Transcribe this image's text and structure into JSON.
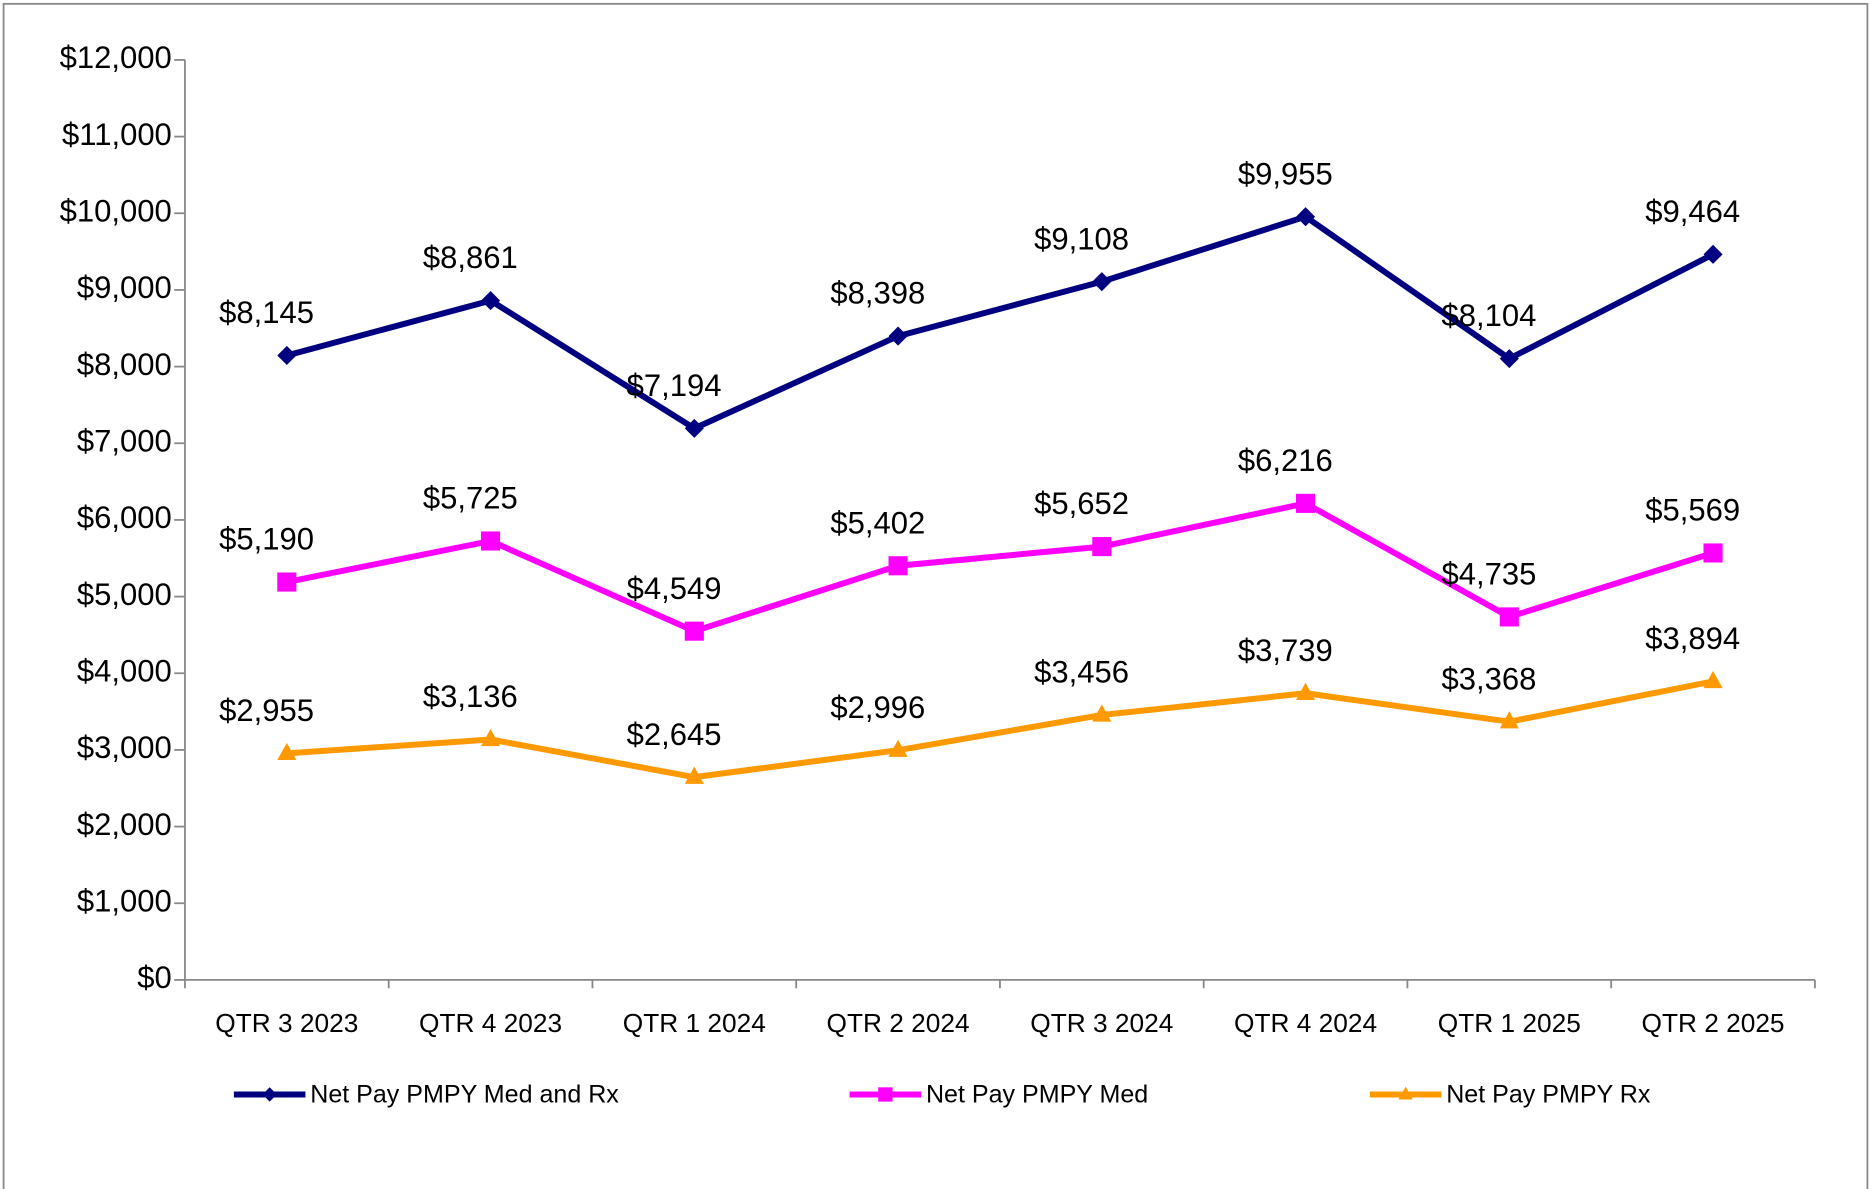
{
  "chart_data": {
    "type": "line",
    "categories": [
      "QTR 3 2023",
      "QTR 4 2023",
      "QTR 1 2024",
      "QTR 2 2024",
      "QTR 3 2024",
      "QTR 4 2024",
      "QTR 1 2025",
      "QTR 2 2025"
    ],
    "series": [
      {
        "name": "Net Pay PMPY Med and Rx",
        "color": "#000080",
        "marker": "diamond",
        "values": [
          8145,
          8861,
          7194,
          8398,
          9108,
          9955,
          8104,
          9464
        ],
        "value_labels": [
          "$8,145",
          "$8,861",
          "$7,194",
          "$8,398",
          "$9,108",
          "$9,955",
          "$8,104",
          "$9,464"
        ]
      },
      {
        "name": "Net Pay PMPY Med",
        "color": "#FF00FF",
        "marker": "square",
        "values": [
          5190,
          5725,
          4549,
          5402,
          5652,
          6216,
          4735,
          5569
        ],
        "value_labels": [
          "$5,190",
          "$5,725",
          "$4,549",
          "$5,402",
          "$5,652",
          "$6,216",
          "$4,735",
          "$5,569"
        ]
      },
      {
        "name": "Net Pay PMPY Rx",
        "color": "#FF9900",
        "marker": "triangle",
        "values": [
          2955,
          3136,
          2645,
          2996,
          3456,
          3739,
          3368,
          3894
        ],
        "value_labels": [
          "$2,955",
          "$3,136",
          "$2,645",
          "$2,996",
          "$3,456",
          "$3,739",
          "$3,368",
          "$3,894"
        ]
      }
    ],
    "ylim": [
      0,
      12000
    ],
    "yticks": [
      {
        "value": 0,
        "label": "$0"
      },
      {
        "value": 1000,
        "label": "$1,000"
      },
      {
        "value": 2000,
        "label": "$2,000"
      },
      {
        "value": 3000,
        "label": "$3,000"
      },
      {
        "value": 4000,
        "label": "$4,000"
      },
      {
        "value": 5000,
        "label": "$5,000"
      },
      {
        "value": 6000,
        "label": "$6,000"
      },
      {
        "value": 7000,
        "label": "$7,000"
      },
      {
        "value": 8000,
        "label": "$8,000"
      },
      {
        "value": 9000,
        "label": "$9,000"
      },
      {
        "value": 10000,
        "label": "$10,000"
      },
      {
        "value": 11000,
        "label": "$11,000"
      },
      {
        "value": 12000,
        "label": "$12,000"
      }
    ],
    "grid": false,
    "legend": "bottom"
  }
}
